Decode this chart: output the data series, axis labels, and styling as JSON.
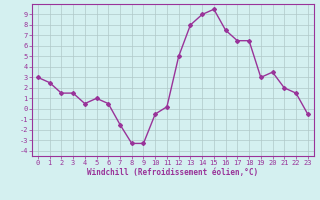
{
  "x": [
    0,
    1,
    2,
    3,
    4,
    5,
    6,
    7,
    8,
    9,
    10,
    11,
    12,
    13,
    14,
    15,
    16,
    17,
    18,
    19,
    20,
    21,
    22,
    23
  ],
  "y": [
    3.0,
    2.5,
    1.5,
    1.5,
    0.5,
    1.0,
    0.5,
    -1.5,
    -3.3,
    -3.3,
    -0.5,
    0.2,
    5.0,
    8.0,
    9.0,
    9.5,
    7.5,
    6.5,
    6.5,
    3.0,
    3.5,
    2.0,
    1.5,
    -0.5
  ],
  "line_color": "#993399",
  "marker": "D",
  "marker_size": 2,
  "bg_color": "#d4f0f0",
  "grid_color": "#b0c8c8",
  "xlabel": "Windchill (Refroidissement éolien,°C)",
  "xlabel_color": "#993399",
  "tick_color": "#993399",
  "label_color": "#993399",
  "ylim": [
    -4.5,
    10
  ],
  "xlim": [
    -0.5,
    23.5
  ],
  "yticks": [
    -4,
    -3,
    -2,
    -1,
    0,
    1,
    2,
    3,
    4,
    5,
    6,
    7,
    8,
    9
  ],
  "xticks": [
    0,
    1,
    2,
    3,
    4,
    5,
    6,
    7,
    8,
    9,
    10,
    11,
    12,
    13,
    14,
    15,
    16,
    17,
    18,
    19,
    20,
    21,
    22,
    23
  ],
  "spine_color": "#993399",
  "linewidth": 1.0,
  "xlabel_fontsize": 5.5,
  "tick_fontsize": 5.0
}
